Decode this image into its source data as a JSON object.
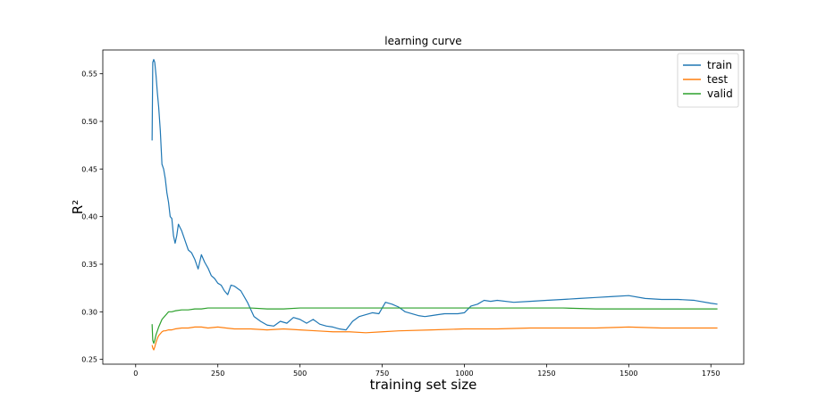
{
  "chart_data": {
    "type": "line",
    "title": "learning curve",
    "xlabel": "training set size",
    "ylabel": "R²",
    "xlim": [
      -100,
      1850
    ],
    "ylim": [
      0.245,
      0.575
    ],
    "x_ticks": [
      0,
      250,
      500,
      750,
      1000,
      1250,
      1500,
      1750
    ],
    "y_ticks": [
      0.25,
      0.3,
      0.35,
      0.4,
      0.45,
      0.5,
      0.55
    ],
    "y_tick_labels": [
      "0.25",
      "0.30",
      "0.35",
      "0.40",
      "0.45",
      "0.50",
      "0.55"
    ],
    "grid": false,
    "legend_position": "top-right",
    "series": [
      {
        "name": "train",
        "color": "#1f77b4",
        "x": [
          50,
          52,
          55,
          58,
          62,
          66,
          70,
          75,
          80,
          85,
          90,
          95,
          100,
          105,
          110,
          115,
          120,
          125,
          130,
          140,
          150,
          160,
          170,
          180,
          190,
          200,
          210,
          220,
          230,
          240,
          250,
          260,
          270,
          280,
          290,
          300,
          320,
          340,
          360,
          380,
          400,
          420,
          440,
          460,
          480,
          500,
          520,
          540,
          560,
          580,
          600,
          620,
          640,
          660,
          680,
          700,
          720,
          740,
          760,
          780,
          800,
          820,
          840,
          860,
          880,
          900,
          920,
          940,
          960,
          980,
          1000,
          1020,
          1040,
          1060,
          1080,
          1100,
          1150,
          1200,
          1250,
          1300,
          1350,
          1400,
          1450,
          1500,
          1550,
          1600,
          1650,
          1700,
          1750,
          1770
        ],
        "y": [
          0.48,
          0.562,
          0.565,
          0.562,
          0.548,
          0.53,
          0.515,
          0.49,
          0.455,
          0.45,
          0.44,
          0.425,
          0.415,
          0.4,
          0.398,
          0.38,
          0.372,
          0.38,
          0.392,
          0.385,
          0.375,
          0.365,
          0.362,
          0.355,
          0.345,
          0.36,
          0.352,
          0.346,
          0.338,
          0.335,
          0.33,
          0.328,
          0.322,
          0.318,
          0.328,
          0.327,
          0.322,
          0.31,
          0.295,
          0.29,
          0.286,
          0.285,
          0.29,
          0.288,
          0.294,
          0.292,
          0.288,
          0.292,
          0.287,
          0.285,
          0.284,
          0.282,
          0.281,
          0.29,
          0.295,
          0.297,
          0.299,
          0.298,
          0.31,
          0.308,
          0.305,
          0.3,
          0.298,
          0.296,
          0.295,
          0.296,
          0.297,
          0.298,
          0.298,
          0.298,
          0.299,
          0.306,
          0.308,
          0.312,
          0.311,
          0.312,
          0.31,
          0.311,
          0.312,
          0.313,
          0.314,
          0.315,
          0.316,
          0.317,
          0.314,
          0.313,
          0.313,
          0.312,
          0.309,
          0.308
        ]
      },
      {
        "name": "test",
        "color": "#ff7f0e",
        "x": [
          50,
          52,
          55,
          58,
          62,
          66,
          70,
          75,
          80,
          85,
          90,
          100,
          110,
          120,
          140,
          160,
          180,
          200,
          220,
          250,
          300,
          350,
          400,
          450,
          500,
          550,
          600,
          650,
          700,
          750,
          800,
          900,
          1000,
          1100,
          1200,
          1300,
          1400,
          1500,
          1600,
          1700,
          1770
        ],
        "y": [
          0.265,
          0.262,
          0.26,
          0.263,
          0.268,
          0.272,
          0.275,
          0.277,
          0.279,
          0.28,
          0.28,
          0.281,
          0.281,
          0.282,
          0.283,
          0.283,
          0.284,
          0.284,
          0.283,
          0.284,
          0.282,
          0.282,
          0.281,
          0.282,
          0.281,
          0.28,
          0.279,
          0.279,
          0.278,
          0.279,
          0.28,
          0.281,
          0.282,
          0.282,
          0.283,
          0.283,
          0.283,
          0.284,
          0.283,
          0.283,
          0.283
        ]
      },
      {
        "name": "valid",
        "color": "#2ca02c",
        "x": [
          50,
          52,
          55,
          58,
          62,
          66,
          70,
          75,
          80,
          85,
          90,
          100,
          110,
          120,
          140,
          160,
          180,
          200,
          220,
          250,
          300,
          350,
          400,
          450,
          500,
          550,
          600,
          650,
          700,
          750,
          800,
          900,
          1000,
          1100,
          1200,
          1300,
          1400,
          1500,
          1600,
          1700,
          1770
        ],
        "y": [
          0.287,
          0.27,
          0.267,
          0.27,
          0.276,
          0.28,
          0.284,
          0.288,
          0.292,
          0.294,
          0.296,
          0.3,
          0.3,
          0.301,
          0.302,
          0.302,
          0.303,
          0.303,
          0.304,
          0.304,
          0.304,
          0.304,
          0.303,
          0.303,
          0.304,
          0.304,
          0.304,
          0.304,
          0.304,
          0.304,
          0.304,
          0.304,
          0.304,
          0.304,
          0.304,
          0.304,
          0.303,
          0.303,
          0.303,
          0.303,
          0.303
        ]
      }
    ]
  }
}
